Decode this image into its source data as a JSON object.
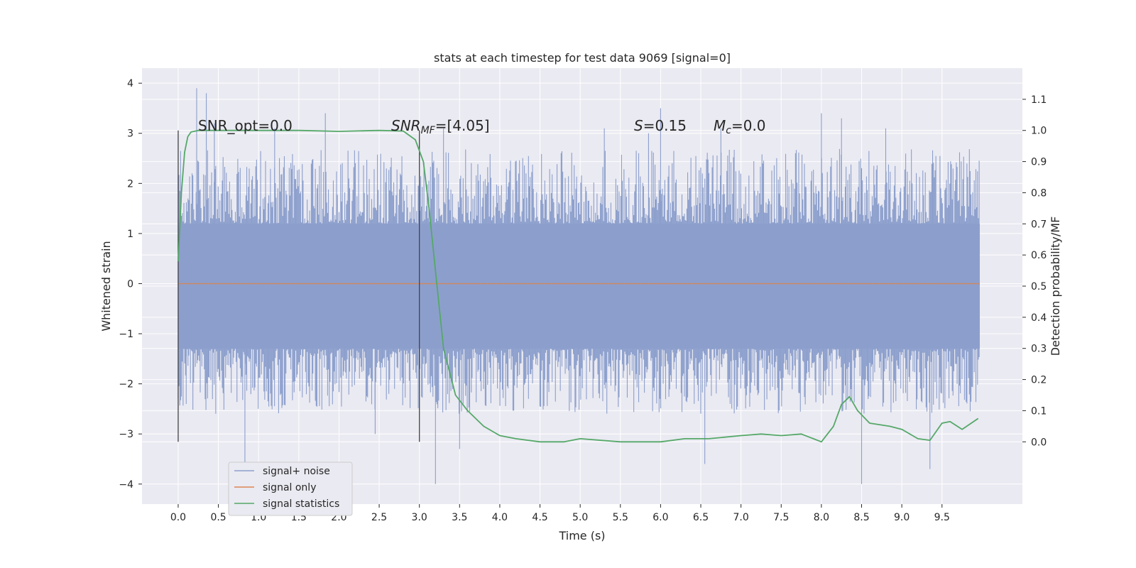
{
  "chart_data": {
    "type": "line",
    "title": "stats at each timestep for test data 9069 [signal=0]",
    "xlabel": "Time (s)",
    "ylabel": "Whitened strain",
    "y2label": "Detection probability/MF",
    "xlim": [
      -0.45,
      10.5
    ],
    "ylim": [
      -4.4,
      4.3
    ],
    "y2lim": [
      -0.2,
      1.2
    ],
    "xticks": [
      "0.0",
      "0.5",
      "1.0",
      "1.5",
      "2.0",
      "2.5",
      "3.0",
      "3.5",
      "4.0",
      "4.5",
      "5.0",
      "5.5",
      "6.0",
      "6.5",
      "7.0",
      "7.5",
      "8.0",
      "8.5",
      "9.0",
      "9.5"
    ],
    "yticks": [
      "4",
      "3",
      "2",
      "1",
      "0",
      "−1",
      "−2",
      "−3",
      "−4"
    ],
    "y2ticks": [
      "1.1",
      "1.0",
      "0.9",
      "0.8",
      "0.7",
      "0.6",
      "0.5",
      "0.4",
      "0.3",
      "0.2",
      "0.1",
      "0.0"
    ],
    "grid": true,
    "legend_position": "lower-left",
    "annotations": {
      "snr_opt": "SNR_opt=0.0",
      "snr_mf_var": "SNR",
      "snr_mf_sub": "MF",
      "snr_mf_val": "=[4.05]",
      "s_var": "S",
      "s_val": "=0.15",
      "mc_var": "M",
      "mc_sub": "c",
      "mc_val": "=0.0"
    },
    "vlines": [
      0.0,
      3.0
    ],
    "noise": {
      "x_range": [
        0.0,
        9.97
      ],
      "core_band": [
        -1.3,
        1.2
      ],
      "spikes": [
        [
          0.23,
          3.9
        ],
        [
          0.35,
          3.8
        ],
        [
          0.1,
          -2.4
        ],
        [
          0.83,
          -3.9
        ],
        [
          0.45,
          3.2
        ],
        [
          1.2,
          3.1
        ],
        [
          1.83,
          3.4
        ],
        [
          2.45,
          -3.0
        ],
        [
          3.2,
          -4.0
        ],
        [
          3.3,
          3.1
        ],
        [
          3.5,
          -3.3
        ],
        [
          5.3,
          3.1
        ],
        [
          5.85,
          3.0
        ],
        [
          6.0,
          3.5
        ],
        [
          6.55,
          -3.6
        ],
        [
          6.75,
          3.1
        ],
        [
          8.5,
          -4.0
        ],
        [
          8.8,
          3.1
        ],
        [
          9.35,
          -3.7
        ],
        [
          8.0,
          3.4
        ],
        [
          8.25,
          3.3
        ]
      ],
      "color": "#8c9fcc"
    },
    "series": [
      {
        "name": "signal+ noise",
        "color": "#8c9fcc"
      },
      {
        "name": "signal only",
        "color": "#dd8452",
        "x": [
          0.0,
          9.97
        ],
        "y": [
          0.0,
          0.0
        ]
      },
      {
        "name": "signal statistics",
        "color": "#55a868",
        "axis": "right",
        "x": [
          0.0,
          0.04,
          0.08,
          0.12,
          0.16,
          0.25,
          0.5,
          1.0,
          1.5,
          2.0,
          2.5,
          2.8,
          2.95,
          3.05,
          3.12,
          3.2,
          3.3,
          3.45,
          3.6,
          3.8,
          4.0,
          4.2,
          4.5,
          4.8,
          5.0,
          5.5,
          6.0,
          6.3,
          6.6,
          7.0,
          7.25,
          7.5,
          7.75,
          8.0,
          8.15,
          8.25,
          8.35,
          8.45,
          8.6,
          8.85,
          9.0,
          9.2,
          9.35,
          9.5,
          9.6,
          9.75,
          9.95
        ],
        "y": [
          0.58,
          0.8,
          0.93,
          0.98,
          0.995,
          1.0,
          1.0,
          1.0,
          1.0,
          0.997,
          1.0,
          0.998,
          0.97,
          0.9,
          0.75,
          0.55,
          0.3,
          0.15,
          0.1,
          0.05,
          0.02,
          0.01,
          0.0,
          0.0,
          0.01,
          0.0,
          0.0,
          0.01,
          0.01,
          0.02,
          0.025,
          0.02,
          0.025,
          0.0,
          0.05,
          0.12,
          0.145,
          0.1,
          0.06,
          0.05,
          0.04,
          0.01,
          0.005,
          0.06,
          0.065,
          0.04,
          0.075
        ]
      }
    ]
  }
}
